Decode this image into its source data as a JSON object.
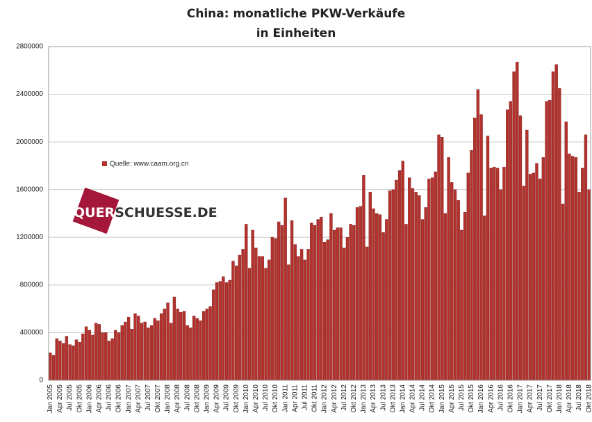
{
  "chart_data": {
    "type": "bar",
    "title": "China: monatliche PKW-Verkäufe",
    "subtitle": "in Einheiten",
    "watermark_parts": [
      "QUER",
      "SCHUESSE.DE"
    ],
    "categories": [
      "Jan 2005",
      null,
      null,
      "Apr 2005",
      null,
      null,
      "Jul 2005",
      null,
      null,
      "Okt 2005",
      null,
      null,
      "Jan 2006",
      null,
      null,
      "Apr 2006",
      null,
      null,
      "Jul 2006",
      null,
      null,
      "Okt 2006",
      null,
      null,
      "Jan 2007",
      null,
      null,
      "Apr 2007",
      null,
      null,
      "Jul 2007",
      null,
      null,
      "Okt 2007",
      null,
      null,
      "Jan 2008",
      null,
      null,
      "Apr 2008",
      null,
      null,
      "Jul 2008",
      null,
      null,
      "Okt 2008",
      null,
      null,
      "Jan 2009",
      null,
      null,
      "Apr 2009",
      null,
      null,
      "Jul 2009",
      null,
      null,
      "Okt 2009",
      null,
      null,
      "Jan 2010",
      null,
      null,
      "Apr 2010",
      null,
      null,
      "Jul 2010",
      null,
      null,
      "Okt 2010",
      null,
      null,
      "Jan 2011",
      null,
      null,
      "Apr 2011",
      null,
      null,
      "Jul 2011",
      null,
      null,
      "Okt 2011",
      null,
      null,
      "Jan 2012",
      null,
      null,
      "Apr 2012",
      null,
      null,
      "Jul 2012",
      null,
      null,
      "Okt 2012",
      null,
      null,
      "Jan 2013",
      null,
      null,
      "Apr 2013",
      null,
      null,
      "Jul 2013",
      null,
      null,
      "Okt 2013",
      null,
      null,
      "Jan 2014",
      null,
      null,
      "Apr 2014",
      null,
      null,
      "Jul 2014",
      null,
      null,
      "Okt 2014",
      null,
      null,
      "Jan 2015",
      null,
      null,
      "Apr 2015",
      null,
      null,
      "Jul 2015",
      null,
      null,
      "Okt 2015",
      null,
      null,
      "Jan 2016",
      null,
      null,
      "Apr 2016",
      null,
      null,
      "Jul 2016",
      null,
      null,
      "Okt 2016",
      null,
      null,
      "Jan 2017",
      null,
      null,
      "Apr 2017",
      null,
      null,
      "Jul 2017",
      null,
      null,
      "Okt 2017",
      null,
      null,
      "Jan 2018",
      null,
      null,
      "Apr 2018",
      null,
      null,
      "Jul 2018",
      null,
      null,
      "Okt 2018"
    ],
    "series": [
      {
        "name": "Quelle: www.caam.org.cn",
        "color": "#b3322d",
        "values": [
          230000,
          210000,
          350000,
          330000,
          310000,
          370000,
          300000,
          290000,
          340000,
          320000,
          390000,
          450000,
          420000,
          380000,
          480000,
          470000,
          400000,
          400000,
          330000,
          350000,
          420000,
          400000,
          460000,
          490000,
          530000,
          430000,
          560000,
          540000,
          480000,
          490000,
          440000,
          460000,
          520000,
          500000,
          560000,
          600000,
          650000,
          480000,
          700000,
          600000,
          570000,
          580000,
          460000,
          440000,
          540000,
          520000,
          500000,
          580000,
          600000,
          620000,
          760000,
          820000,
          830000,
          870000,
          820000,
          840000,
          1000000,
          960000,
          1050000,
          1100000,
          1310000,
          940000,
          1260000,
          1110000,
          1040000,
          1040000,
          940000,
          1010000,
          1200000,
          1190000,
          1330000,
          1300000,
          1530000,
          970000,
          1340000,
          1140000,
          1040000,
          1100000,
          1010000,
          1100000,
          1320000,
          1300000,
          1350000,
          1370000,
          1160000,
          1180000,
          1400000,
          1260000,
          1280000,
          1280000,
          1110000,
          1200000,
          1310000,
          1300000,
          1450000,
          1460000,
          1720000,
          1120000,
          1580000,
          1440000,
          1400000,
          1390000,
          1240000,
          1350000,
          1590000,
          1600000,
          1680000,
          1760000,
          1840000,
          1310000,
          1700000,
          1610000,
          1580000,
          1550000,
          1350000,
          1450000,
          1690000,
          1700000,
          1750000,
          2060000,
          2040000,
          1400000,
          1870000,
          1660000,
          1600000,
          1510000,
          1260000,
          1410000,
          1740000,
          1930000,
          2200000,
          2440000,
          2230000,
          1380000,
          2050000,
          1780000,
          1790000,
          1780000,
          1600000,
          1790000,
          2270000,
          2340000,
          2590000,
          2670000,
          2220000,
          1630000,
          2100000,
          1730000,
          1740000,
          1820000,
          1690000,
          1870000,
          2340000,
          2350000,
          2590000,
          2650000,
          2450000,
          1480000,
          2170000,
          1900000,
          1880000,
          1870000,
          1580000,
          1780000,
          2060000,
          1600000
        ]
      }
    ],
    "ylim": [
      0,
      2800000
    ],
    "yticks": [
      0,
      400000,
      800000,
      1200000,
      1600000,
      2000000,
      2400000,
      2800000
    ],
    "grid": true
  }
}
